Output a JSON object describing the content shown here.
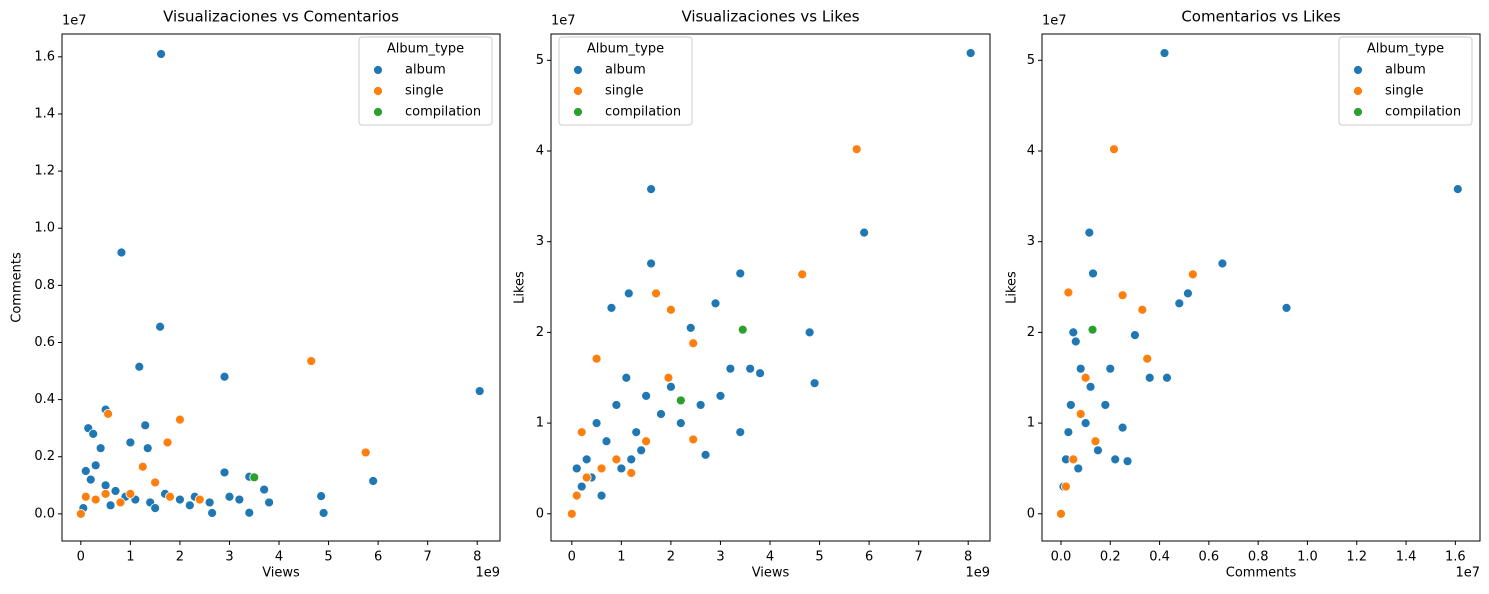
{
  "chart_data": [
    {
      "type": "scatter",
      "title": "Visualizaciones vs Comentarios",
      "xlabel": "Views",
      "ylabel": "Comments",
      "x_offset_label": "1e9",
      "y_offset_label": "1e7",
      "xlim": [
        -0.38,
        8.46
      ],
      "ylim": [
        -0.095,
        1.68
      ],
      "xticks": [
        0,
        1,
        2,
        3,
        4,
        5,
        6,
        7,
        8
      ],
      "yticks": [
        {
          "value": 0,
          "label": "0.0"
        },
        {
          "value": 0.2,
          "label": "0.2"
        },
        {
          "value": 0.4,
          "label": "0.4"
        },
        {
          "value": 0.6,
          "label": "0.6"
        },
        {
          "value": 0.8,
          "label": "0.8"
        },
        {
          "value": 1.0,
          "label": "1.0"
        },
        {
          "value": 1.2,
          "label": "1.2"
        },
        {
          "value": 1.4,
          "label": "1.4"
        },
        {
          "value": 1.6,
          "label": "1.6"
        }
      ],
      "legend_title": "Album_type",
      "legend_position": "upper-right",
      "series": [
        {
          "name": "album",
          "color": "#1f77b4",
          "x": [
            1.62,
            0.82,
            1.6,
            1.18,
            2.9,
            8.05,
            0.5,
            1.0,
            0.15,
            0.25,
            0.4,
            1.3,
            1.35,
            2.9,
            3.4,
            3.7,
            4.85,
            4.9,
            5.9,
            3.4,
            2.65,
            0.1,
            0.2,
            0.3,
            0.5,
            0.7,
            0.9,
            1.1,
            1.4,
            1.7,
            2.0,
            2.3,
            2.6,
            3.0,
            3.2,
            3.8,
            0.05,
            0.6,
            1.5,
            2.2
          ],
          "y": [
            1.61,
            0.915,
            0.655,
            0.515,
            0.48,
            0.43,
            0.365,
            0.25,
            0.3,
            0.28,
            0.23,
            0.31,
            0.23,
            0.145,
            0.13,
            0.085,
            0.062,
            0.003,
            0.115,
            0.004,
            0.003,
            0.15,
            0.12,
            0.17,
            0.1,
            0.08,
            0.06,
            0.05,
            0.04,
            0.07,
            0.05,
            0.06,
            0.04,
            0.06,
            0.05,
            0.04,
            0.02,
            0.03,
            0.02,
            0.03
          ]
        },
        {
          "name": "single",
          "color": "#ff7f0e",
          "x": [
            0.55,
            2.0,
            1.75,
            4.65,
            5.75,
            1.25,
            1.5,
            0.0,
            0.1,
            0.3,
            0.5,
            0.8,
            1.0,
            1.8,
            2.4
          ],
          "y": [
            0.35,
            0.33,
            0.25,
            0.535,
            0.215,
            0.165,
            0.11,
            0.0,
            0.06,
            0.05,
            0.07,
            0.04,
            0.07,
            0.06,
            0.05
          ]
        },
        {
          "name": "compilation",
          "color": "#2ca02c",
          "x": [
            3.5
          ],
          "y": [
            0.128
          ]
        }
      ]
    },
    {
      "type": "scatter",
      "title": "Visualizaciones vs Likes",
      "xlabel": "Views",
      "ylabel": "Likes",
      "x_offset_label": "1e9",
      "y_offset_label": "1e7",
      "xlim": [
        -0.42,
        8.44
      ],
      "ylim": [
        -0.3,
        5.29
      ],
      "xticks": [
        0,
        1,
        2,
        3,
        4,
        5,
        6,
        7,
        8
      ],
      "yticks": [
        0,
        1,
        2,
        3,
        4,
        5
      ],
      "legend_title": "Album_type",
      "legend_position": "upper-left",
      "series": [
        {
          "name": "album",
          "color": "#1f77b4",
          "x": [
            8.05,
            1.6,
            5.9,
            1.6,
            3.4,
            2.9,
            0.8,
            4.8,
            1.15,
            2.4,
            4.9,
            3.8,
            3.4,
            0.1,
            0.3,
            0.5,
            0.7,
            0.9,
            1.1,
            1.3,
            1.5,
            1.8,
            2.0,
            2.2,
            2.6,
            3.0,
            3.2,
            0.2,
            0.6,
            1.0,
            1.4,
            0.4,
            2.7,
            3.6,
            1.2
          ],
          "y": [
            5.08,
            3.58,
            3.1,
            2.76,
            2.65,
            2.32,
            2.27,
            2.0,
            2.43,
            2.05,
            1.44,
            1.55,
            0.9,
            0.5,
            0.6,
            1.0,
            0.8,
            1.2,
            1.5,
            0.9,
            1.3,
            1.1,
            1.4,
            1.0,
            1.2,
            1.3,
            1.6,
            0.3,
            0.2,
            0.5,
            0.7,
            0.4,
            0.65,
            1.6,
            0.6
          ]
        },
        {
          "name": "single",
          "color": "#ff7f0e",
          "x": [
            5.75,
            4.65,
            1.7,
            2.0,
            0.5,
            2.45,
            1.95,
            2.45,
            0.0,
            0.1,
            0.3,
            0.6,
            0.9,
            1.2,
            1.5,
            0.2
          ],
          "y": [
            4.02,
            2.64,
            2.43,
            2.25,
            1.71,
            1.88,
            1.5,
            0.82,
            0.0,
            0.2,
            0.4,
            0.5,
            0.6,
            0.45,
            0.8,
            0.9
          ]
        },
        {
          "name": "compilation",
          "color": "#2ca02c",
          "x": [
            3.45,
            2.2
          ],
          "y": [
            2.03,
            1.25
          ]
        }
      ]
    },
    {
      "type": "scatter",
      "title": "Comentarios vs Likes",
      "xlabel": "Comments",
      "ylabel": "Likes",
      "x_offset_label": "1e7",
      "y_offset_label": "1e7",
      "xlim": [
        -0.077,
        1.7
      ],
      "ylim": [
        -0.3,
        5.29
      ],
      "xticks": [
        {
          "value": 0,
          "label": "0.0"
        },
        {
          "value": 0.2,
          "label": "0.2"
        },
        {
          "value": 0.4,
          "label": "0.4"
        },
        {
          "value": 0.6,
          "label": "0.6"
        },
        {
          "value": 0.8,
          "label": "0.8"
        },
        {
          "value": 1.0,
          "label": "1.0"
        },
        {
          "value": 1.2,
          "label": "1.2"
        },
        {
          "value": 1.4,
          "label": "1.4"
        },
        {
          "value": 1.6,
          "label": "1.6"
        }
      ],
      "yticks": [
        0,
        1,
        2,
        3,
        4,
        5
      ],
      "legend_title": "Album_type",
      "legend_position": "upper-right",
      "series": [
        {
          "name": "album",
          "color": "#1f77b4",
          "x": [
            0.42,
            1.61,
            0.655,
            0.915,
            0.48,
            0.515,
            0.115,
            0.13,
            0.3,
            0.43,
            0.36,
            0.25,
            0.2,
            0.06,
            0.02,
            0.04,
            0.08,
            0.1,
            0.15,
            0.05,
            0.03,
            0.07,
            0.01,
            0.12,
            0.18,
            0.22,
            0.27,
            0.0
          ],
          "y": [
            5.08,
            3.58,
            2.76,
            2.27,
            2.32,
            2.43,
            3.1,
            2.65,
            1.97,
            1.5,
            1.5,
            0.95,
            1.6,
            1.9,
            0.6,
            1.2,
            1.6,
            1.0,
            0.7,
            2.0,
            0.9,
            0.5,
            0.3,
            1.4,
            1.2,
            0.6,
            0.58,
            0.0
          ]
        },
        {
          "name": "single",
          "color": "#ff7f0e",
          "x": [
            0.215,
            0.535,
            0.25,
            0.33,
            0.35,
            0.03,
            0.0,
            0.02,
            0.05,
            0.08,
            0.1,
            0.14
          ],
          "y": [
            4.02,
            2.64,
            2.41,
            2.25,
            1.71,
            2.44,
            0.0,
            0.3,
            0.6,
            1.1,
            1.5,
            0.8
          ]
        },
        {
          "name": "compilation",
          "color": "#2ca02c",
          "x": [
            0.128
          ],
          "y": [
            2.03
          ]
        }
      ]
    }
  ]
}
